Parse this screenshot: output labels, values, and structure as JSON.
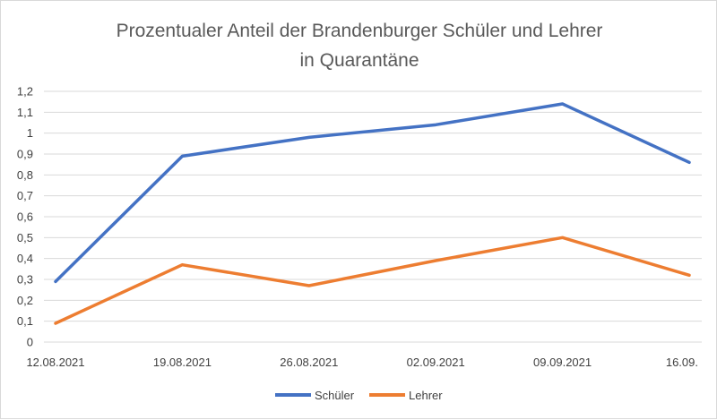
{
  "chart_data": {
    "type": "line",
    "title_lines": [
      "Prozentualer Anteil der Brandenburger Schüler und Lehrer",
      "in Quarantäne"
    ],
    "categories": [
      "12.08.2021",
      "19.08.2021",
      "26.08.2021",
      "02.09.2021",
      "09.09.2021",
      "16.09."
    ],
    "ylim": [
      0,
      1.2
    ],
    "yticks": [
      "0",
      "0,1",
      "0,2",
      "0,3",
      "0,4",
      "0,5",
      "0,6",
      "0,7",
      "0,8",
      "0,9",
      "1",
      "1,1",
      "1,2"
    ],
    "grid": true,
    "legend_position": "bottom",
    "series": [
      {
        "name": "Schüler",
        "color": "#4472c4",
        "values": [
          0.29,
          0.89,
          0.98,
          1.04,
          1.14,
          0.86
        ]
      },
      {
        "name": "Lehrer",
        "color": "#ed7d31",
        "values": [
          0.09,
          0.37,
          0.27,
          0.39,
          0.5,
          0.32
        ]
      }
    ]
  }
}
